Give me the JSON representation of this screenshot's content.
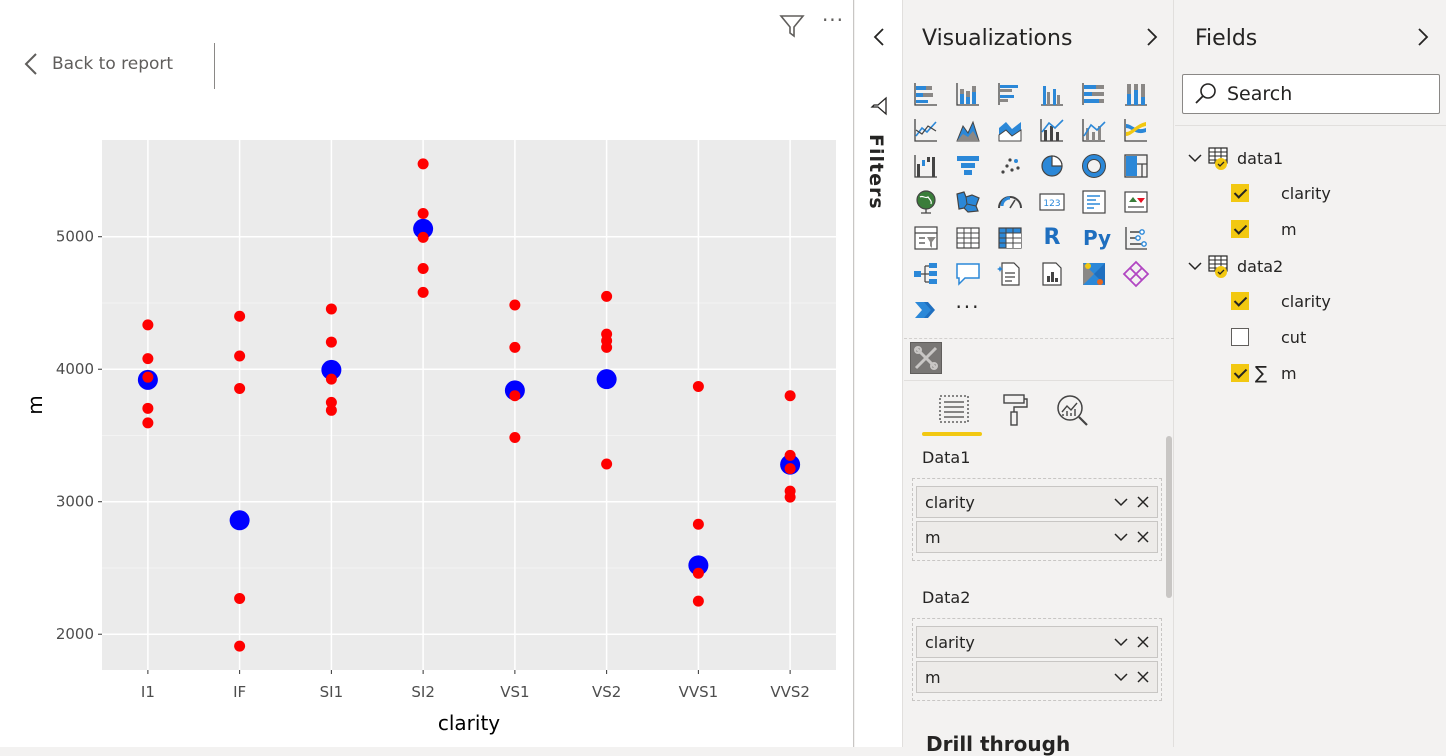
{
  "report": {
    "back_label": "Back to report"
  },
  "chart_data": {
    "type": "scatter",
    "xlabel": "clarity",
    "ylabel": "m",
    "categories": [
      "I1",
      "IF",
      "SI1",
      "SI2",
      "VS1",
      "VS2",
      "VVS1",
      "VVS2"
    ],
    "yticks": [
      2000,
      3000,
      4000,
      5000
    ],
    "ylim": [
      1730,
      5730
    ],
    "grid": true,
    "background": "#ebebeb",
    "series": [
      {
        "color": "#0000ff",
        "values": [
          3920,
          2860,
          3995,
          5060,
          3840,
          3925,
          2520,
          3280
        ]
      },
      {
        "color": "#ff0000",
        "points": [
          [
            "I1",
            4335
          ],
          [
            "I1",
            4080
          ],
          [
            "I1",
            3940
          ],
          [
            "I1",
            3705
          ],
          [
            "I1",
            3595
          ],
          [
            "IF",
            4400
          ],
          [
            "IF",
            4100
          ],
          [
            "IF",
            3855
          ],
          [
            "IF",
            2270
          ],
          [
            "IF",
            1910
          ],
          [
            "SI1",
            4455
          ],
          [
            "SI1",
            4205
          ],
          [
            "SI1",
            3925
          ],
          [
            "SI1",
            3750
          ],
          [
            "SI1",
            3690
          ],
          [
            "SI2",
            5550
          ],
          [
            "SI2",
            5175
          ],
          [
            "SI2",
            4995
          ],
          [
            "SI2",
            4760
          ],
          [
            "SI2",
            4580
          ],
          [
            "VS1",
            4485
          ],
          [
            "VS1",
            4165
          ],
          [
            "VS1",
            3800
          ],
          [
            "VS1",
            3485
          ],
          [
            "VS2",
            4550
          ],
          [
            "VS2",
            4265
          ],
          [
            "VS2",
            4215
          ],
          [
            "VS2",
            4165
          ],
          [
            "VS2",
            3285
          ],
          [
            "VVS1",
            3870
          ],
          [
            "VVS1",
            2830
          ],
          [
            "VVS1",
            2460
          ],
          [
            "VVS1",
            2250
          ],
          [
            "VVS2",
            3800
          ],
          [
            "VVS2",
            3350
          ],
          [
            "VVS2",
            3250
          ],
          [
            "VVS2",
            3080
          ],
          [
            "VVS2",
            3035
          ]
        ]
      }
    ]
  },
  "filters": {
    "label": "Filters"
  },
  "visualizations": {
    "title": "Visualizations",
    "r_label": "R",
    "py_label": "Py",
    "more_label": "···",
    "wells": [
      {
        "label": "Data1",
        "fields": [
          "clarity",
          "m"
        ]
      },
      {
        "label": "Data2",
        "fields": [
          "clarity",
          "m"
        ]
      }
    ],
    "drill_through_label": "Drill through"
  },
  "fields": {
    "title": "Fields",
    "search_placeholder": "Search",
    "tables": [
      {
        "name": "data1",
        "fields": [
          {
            "name": "clarity",
            "checked": true,
            "sigma": false
          },
          {
            "name": "m",
            "checked": true,
            "sigma": false
          }
        ]
      },
      {
        "name": "data2",
        "fields": [
          {
            "name": "clarity",
            "checked": true,
            "sigma": false
          },
          {
            "name": "cut",
            "checked": false,
            "sigma": false
          },
          {
            "name": "m",
            "checked": true,
            "sigma": true
          }
        ]
      }
    ]
  },
  "colors": {
    "accent": "#f2c811",
    "pane_bg": "#f3f2f1",
    "viz_blue": "#2b88d8"
  }
}
